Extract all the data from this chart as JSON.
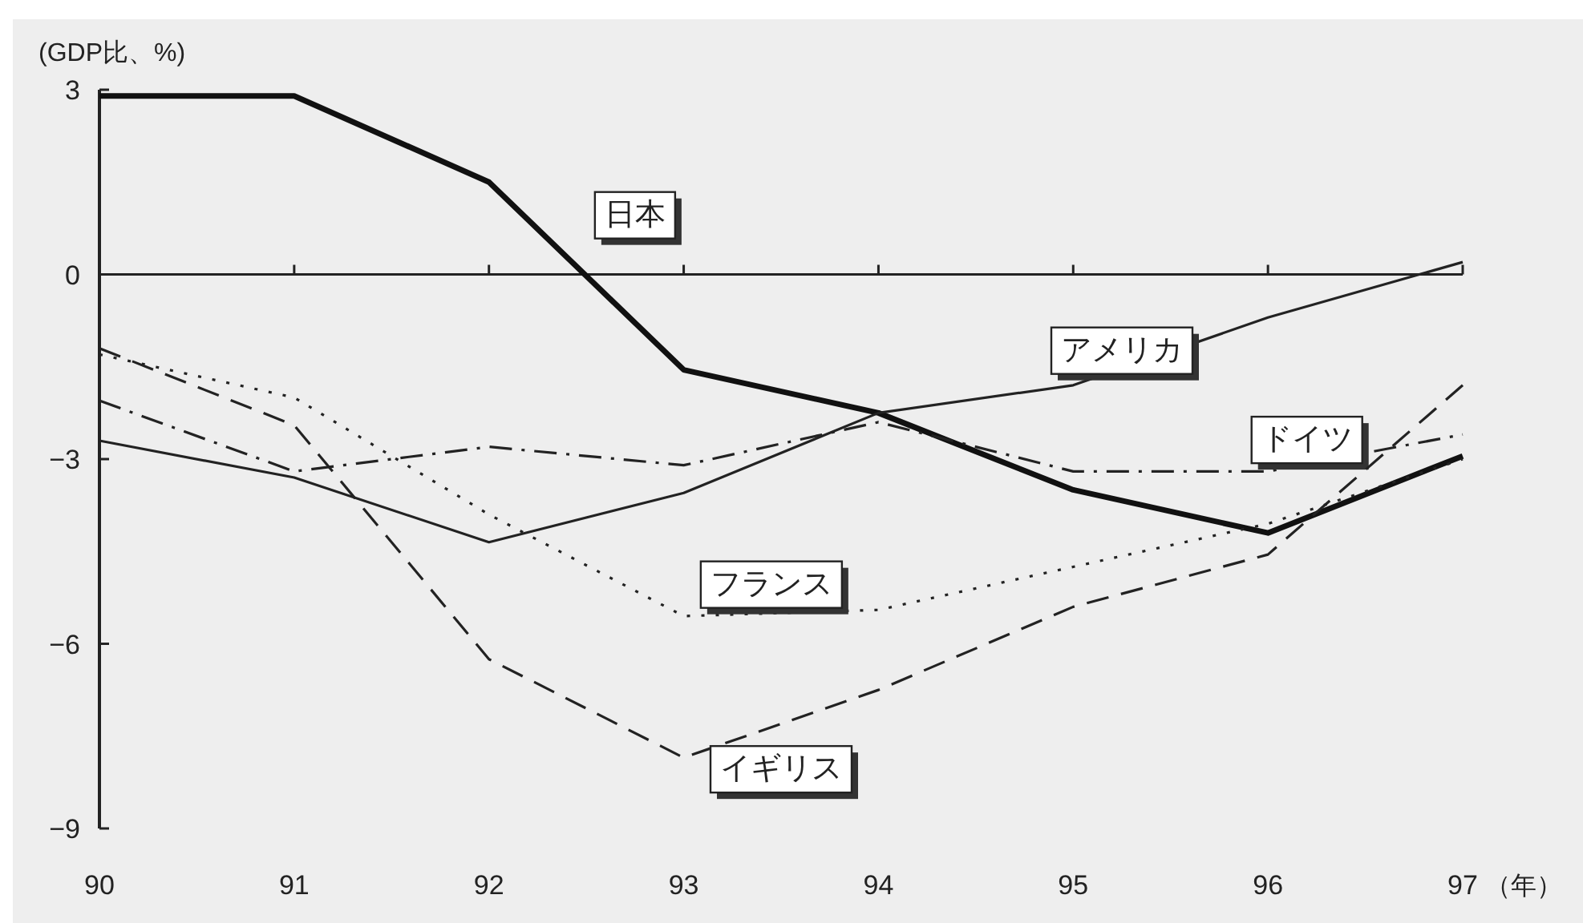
{
  "chart_data": {
    "type": "line",
    "ylabel": "(GDP比、%)",
    "xlabel": "（年）",
    "x": [
      90,
      91,
      92,
      93,
      94,
      95,
      96,
      97
    ],
    "xlim": [
      90,
      97
    ],
    "ylim": [
      -9,
      3
    ],
    "xticks": [
      90,
      91,
      92,
      93,
      94,
      95,
      96,
      97
    ],
    "yticks": [
      {
        "value": 3,
        "label": "3"
      },
      {
        "value": 0,
        "label": "0"
      },
      {
        "value": -3,
        "label": "−3"
      },
      {
        "value": -6,
        "label": "−6"
      },
      {
        "value": -9,
        "label": "−9"
      }
    ],
    "marker": "none",
    "ref_lines": [
      {
        "axis": "y",
        "value": 0,
        "color": "#222222",
        "line_style": "solid"
      }
    ],
    "series": [
      {
        "name": "日本",
        "color": "#111111",
        "line_style": "solid",
        "values": [
          2.9,
          2.9,
          1.5,
          -1.55,
          -2.25,
          -3.5,
          -4.2,
          -2.95
        ]
      },
      {
        "name": "アメリカ",
        "color": "#222222",
        "line_style": "solid",
        "values": [
          -2.7,
          -3.3,
          -4.35,
          -3.55,
          -2.25,
          -1.8,
          -0.7,
          0.2
        ]
      },
      {
        "name": "ドイツ",
        "color": "#222222",
        "line_style": "dashdot",
        "values": [
          -2.05,
          -3.2,
          -2.8,
          -3.1,
          -2.4,
          -3.2,
          -3.2,
          -2.6
        ]
      },
      {
        "name": "フランス",
        "color": "#222222",
        "line_style": "dotted",
        "values": [
          -1.3,
          -2.0,
          -3.9,
          -5.55,
          -5.45,
          -4.75,
          -4.05,
          -3.0
        ]
      },
      {
        "name": "イギリス",
        "color": "#222222",
        "line_style": "dashed",
        "values": [
          -1.2,
          -2.45,
          -6.25,
          -7.85,
          -6.75,
          -5.4,
          -4.55,
          -1.8
        ]
      }
    ]
  }
}
